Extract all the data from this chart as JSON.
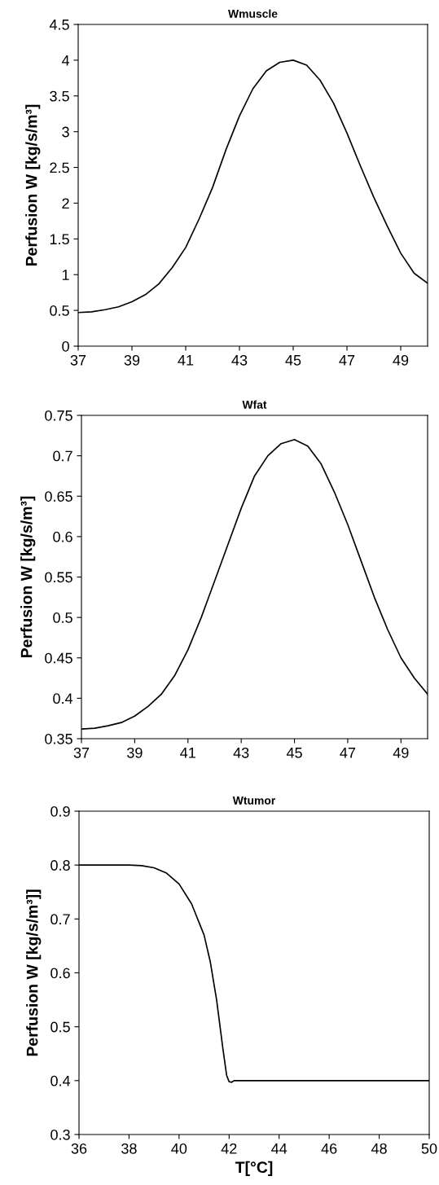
{
  "chart_data": [
    {
      "type": "line",
      "title": "Wmuscle",
      "ylabel": "Perfusion W [kg/s/m³]",
      "x": [
        37,
        37.5,
        38,
        38.5,
        39,
        39.5,
        40,
        40.5,
        41,
        41.5,
        42,
        42.5,
        43,
        43.5,
        44,
        44.5,
        45,
        45.5,
        46,
        46.5,
        47,
        47.5,
        48,
        48.5,
        49,
        49.5,
        50
      ],
      "series": [
        {
          "color": "#000000",
          "values": [
            0.47,
            0.48,
            0.51,
            0.55,
            0.62,
            0.72,
            0.87,
            1.1,
            1.38,
            1.78,
            2.22,
            2.75,
            3.22,
            3.6,
            3.85,
            3.97,
            4.0,
            3.93,
            3.72,
            3.4,
            2.98,
            2.52,
            2.08,
            1.68,
            1.3,
            1.02,
            0.88
          ]
        }
      ],
      "xlim": [
        37,
        50
      ],
      "xticks": [
        37,
        39,
        41,
        43,
        45,
        47,
        49
      ],
      "ylim": [
        0,
        4.5
      ],
      "yticks": [
        0,
        0.5,
        1,
        1.5,
        2,
        2.5,
        3,
        3.5,
        4,
        4.5
      ],
      "grid": false
    },
    {
      "type": "line",
      "title": "Wfat",
      "ylabel": "Perfusion W [kg/s/m³]",
      "x": [
        37,
        37.5,
        38,
        38.5,
        39,
        39.5,
        40,
        40.5,
        41,
        41.5,
        42,
        42.5,
        43,
        43.5,
        44,
        44.5,
        45,
        45.5,
        46,
        46.5,
        47,
        47.5,
        48,
        48.5,
        49,
        49.5,
        50
      ],
      "series": [
        {
          "color": "#000000",
          "values": [
            0.362,
            0.363,
            0.366,
            0.37,
            0.378,
            0.39,
            0.405,
            0.428,
            0.46,
            0.5,
            0.545,
            0.59,
            0.635,
            0.675,
            0.7,
            0.715,
            0.72,
            0.712,
            0.69,
            0.655,
            0.615,
            0.57,
            0.525,
            0.485,
            0.45,
            0.425,
            0.405
          ]
        }
      ],
      "xlim": [
        37,
        50
      ],
      "xticks": [
        37,
        39,
        41,
        43,
        45,
        47,
        49
      ],
      "ylim": [
        0.35,
        0.75
      ],
      "yticks": [
        0.35,
        0.4,
        0.45,
        0.5,
        0.55,
        0.6,
        0.65,
        0.7,
        0.75
      ],
      "grid": false
    },
    {
      "type": "line",
      "title": "Wtumor",
      "ylabel": "Perfusion W [kg/s/m³]]",
      "xlabel": "T[°C]",
      "x": [
        36,
        37,
        38,
        38.5,
        39,
        39.5,
        40,
        40.5,
        41,
        41.25,
        41.5,
        41.75,
        41.9,
        42,
        42.1,
        42.2,
        43,
        44,
        46,
        48,
        50
      ],
      "series": [
        {
          "color": "#000000",
          "values": [
            0.8,
            0.8,
            0.8,
            0.799,
            0.795,
            0.785,
            0.765,
            0.728,
            0.67,
            0.62,
            0.55,
            0.46,
            0.41,
            0.398,
            0.397,
            0.4,
            0.4,
            0.4,
            0.4,
            0.4,
            0.4
          ]
        }
      ],
      "xlim": [
        36,
        50
      ],
      "xticks": [
        36,
        38,
        40,
        42,
        44,
        46,
        48,
        50
      ],
      "ylim": [
        0.3,
        0.9
      ],
      "yticks": [
        0.3,
        0.4,
        0.5,
        0.6,
        0.7,
        0.8,
        0.9
      ],
      "grid": false
    }
  ]
}
